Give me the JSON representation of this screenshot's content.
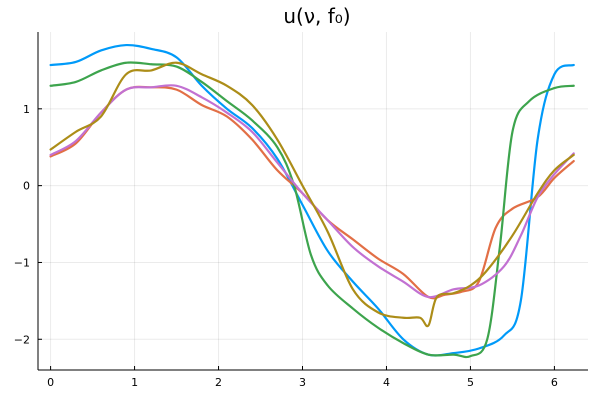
{
  "chart_data": {
    "type": "line",
    "title": "u(ν, f₀)",
    "xlabel": "",
    "ylabel": "",
    "xlim": [
      -0.15,
      6.4
    ],
    "ylim": [
      -2.4,
      2.0
    ],
    "xticks": [
      0,
      1,
      2,
      3,
      4,
      5,
      6
    ],
    "yticks": [
      -2,
      -1,
      0,
      1
    ],
    "ytick_labels": [
      "−2",
      "−1",
      "0",
      "1"
    ],
    "grid": true,
    "legend": "none",
    "series": [
      {
        "color": "#009af9",
        "x": [
          0,
          0.3,
          0.6,
          0.9,
          1.2,
          1.5,
          1.8,
          2.1,
          2.4,
          2.7,
          3.0,
          3.3,
          3.6,
          3.9,
          4.2,
          4.5,
          4.8,
          5.1,
          5.4,
          5.6,
          5.8,
          6.0,
          6.23
        ],
        "y": [
          1.57,
          1.61,
          1.76,
          1.83,
          1.78,
          1.67,
          1.3,
          1.0,
          0.75,
          0.35,
          -0.25,
          -0.85,
          -1.25,
          -1.6,
          -2.0,
          -2.2,
          -2.18,
          -2.12,
          -1.95,
          -1.5,
          0.6,
          1.45,
          1.57
        ]
      },
      {
        "color": "#e26f46",
        "x": [
          0,
          0.3,
          0.6,
          0.9,
          1.2,
          1.5,
          1.8,
          2.1,
          2.4,
          2.7,
          3.0,
          3.3,
          3.6,
          3.9,
          4.2,
          4.5,
          4.7,
          4.9,
          5.1,
          5.3,
          5.5,
          5.8,
          6.0,
          6.23
        ],
        "y": [
          0.38,
          0.55,
          0.95,
          1.25,
          1.28,
          1.25,
          1.05,
          0.9,
          0.6,
          0.2,
          -0.1,
          -0.45,
          -0.7,
          -0.95,
          -1.15,
          -1.45,
          -1.42,
          -1.38,
          -1.25,
          -0.55,
          -0.3,
          -0.15,
          0.1,
          0.32
        ]
      },
      {
        "color": "#3da44d",
        "x": [
          0,
          0.3,
          0.6,
          0.9,
          1.2,
          1.5,
          1.8,
          2.1,
          2.4,
          2.7,
          2.9,
          3.1,
          3.3,
          3.6,
          3.9,
          4.2,
          4.5,
          4.8,
          5.0,
          5.2,
          5.35,
          5.5,
          5.7,
          6.0,
          6.23
        ],
        "y": [
          1.3,
          1.35,
          1.5,
          1.6,
          1.58,
          1.55,
          1.35,
          1.1,
          0.85,
          0.5,
          0.0,
          -0.9,
          -1.3,
          -1.6,
          -1.85,
          -2.05,
          -2.2,
          -2.2,
          -2.22,
          -2.0,
          -0.8,
          0.7,
          1.1,
          1.27,
          1.3
        ]
      },
      {
        "color": "#c271d2",
        "x": [
          0,
          0.3,
          0.6,
          0.9,
          1.2,
          1.5,
          1.8,
          2.1,
          2.4,
          2.7,
          3.0,
          3.3,
          3.6,
          3.9,
          4.2,
          4.5,
          4.8,
          5.1,
          5.4,
          5.6,
          5.8,
          6.0,
          6.23
        ],
        "y": [
          0.4,
          0.58,
          0.95,
          1.25,
          1.28,
          1.3,
          1.15,
          0.95,
          0.7,
          0.3,
          -0.1,
          -0.45,
          -0.8,
          -1.05,
          -1.25,
          -1.45,
          -1.35,
          -1.3,
          -1.05,
          -0.65,
          -0.15,
          0.15,
          0.42
        ]
      },
      {
        "color": "#ac8d18",
        "x": [
          0,
          0.3,
          0.6,
          0.9,
          1.2,
          1.5,
          1.8,
          2.1,
          2.4,
          2.7,
          3.0,
          3.3,
          3.6,
          3.9,
          4.2,
          4.4,
          4.5,
          4.6,
          4.8,
          5.0,
          5.2,
          5.5,
          5.8,
          6.0,
          6.23
        ],
        "y": [
          0.47,
          0.7,
          0.9,
          1.45,
          1.5,
          1.6,
          1.45,
          1.3,
          1.05,
          0.6,
          0.0,
          -0.6,
          -1.35,
          -1.65,
          -1.72,
          -1.72,
          -1.82,
          -1.45,
          -1.4,
          -1.3,
          -1.1,
          -0.65,
          -0.1,
          0.2,
          0.4
        ]
      }
    ]
  }
}
